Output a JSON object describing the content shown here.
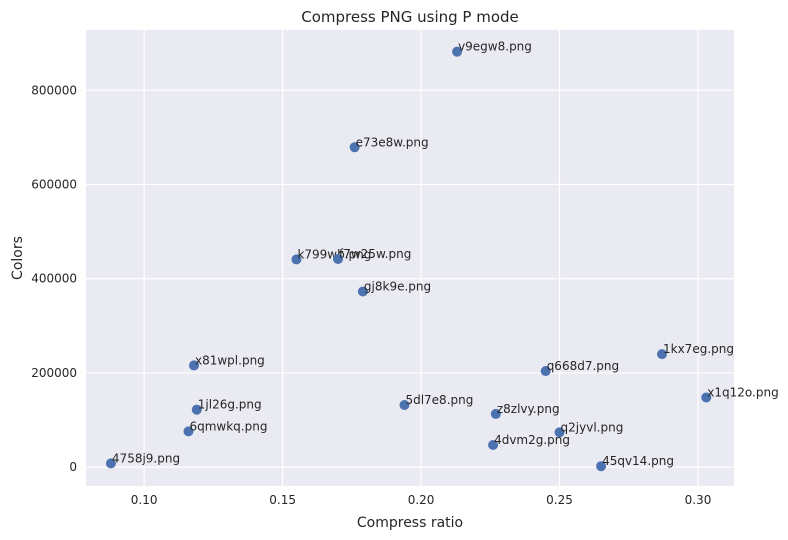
{
  "chart_data": {
    "type": "scatter",
    "title": "Compress PNG using P mode",
    "xlabel": "Compress ratio",
    "ylabel": "Colors",
    "xlim": [
      0.079,
      0.313
    ],
    "ylim": [
      -40000,
      928000
    ],
    "xticks": [
      0.1,
      0.15,
      0.2,
      0.25,
      0.3
    ],
    "xtick_labels": [
      "0.10",
      "0.15",
      "0.20",
      "0.25",
      "0.30"
    ],
    "yticks": [
      0,
      200000,
      400000,
      600000,
      800000
    ],
    "ytick_labels": [
      "0",
      "200000",
      "400000",
      "600000",
      "800000"
    ],
    "grid": true,
    "colors": {
      "background": "#eaeaf2",
      "grid": "#ffffff",
      "marker": "#4c72b0"
    },
    "points": [
      {
        "label": "v9egw8.png",
        "x": 0.213,
        "y": 882000
      },
      {
        "label": "e73e8w.png",
        "x": 0.176,
        "y": 679000
      },
      {
        "label": "k799wb.png",
        "x": 0.155,
        "y": 441000
      },
      {
        "label": "f7w25w.png",
        "x": 0.17,
        "y": 442000
      },
      {
        "label": "gj8k9e.png",
        "x": 0.179,
        "y": 373000
      },
      {
        "label": "1kx7eg.png",
        "x": 0.287,
        "y": 240000
      },
      {
        "label": "x81wpl.png",
        "x": 0.118,
        "y": 216000
      },
      {
        "label": "q668d7.png",
        "x": 0.245,
        "y": 204000
      },
      {
        "label": "x1q12o.png",
        "x": 0.303,
        "y": 148000
      },
      {
        "label": "5dl7e8.png",
        "x": 0.194,
        "y": 132000
      },
      {
        "label": "1jl26g.png",
        "x": 0.119,
        "y": 122000
      },
      {
        "label": "z8zlvy.png",
        "x": 0.227,
        "y": 113000
      },
      {
        "label": "6qmwkq.png",
        "x": 0.116,
        "y": 76000
      },
      {
        "label": "q2jyvl.png",
        "x": 0.25,
        "y": 74000
      },
      {
        "label": "4dvm2g.png",
        "x": 0.226,
        "y": 47000
      },
      {
        "label": "4758j9.png",
        "x": 0.088,
        "y": 8000
      },
      {
        "label": "45qv14.png",
        "x": 0.265,
        "y": 2000
      }
    ]
  }
}
